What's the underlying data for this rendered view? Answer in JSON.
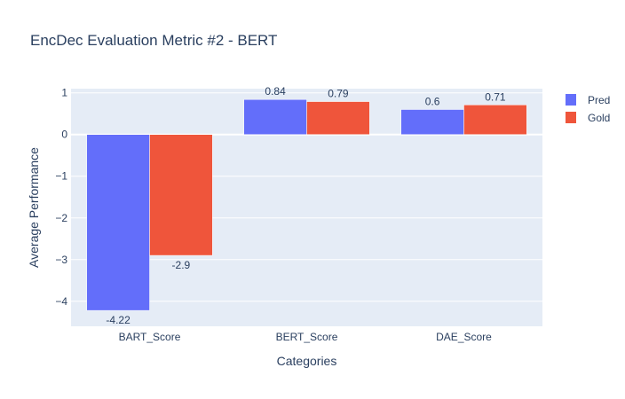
{
  "chart_data": {
    "type": "bar",
    "title": "EncDec Evaluation Metric #2 - BERT",
    "xlabel": "Categories",
    "ylabel": "Average Performance",
    "categories": [
      "BART_Score",
      "BERT_Score",
      "DAE_Score"
    ],
    "series": [
      {
        "name": "Pred",
        "values": [
          -4.22,
          0.84,
          0.6
        ],
        "labels": [
          "-4.22",
          "0.84",
          "0.6"
        ],
        "color": "#636efa"
      },
      {
        "name": "Gold",
        "values": [
          -2.9,
          0.79,
          0.71
        ],
        "labels": [
          "-2.9",
          "0.79",
          "0.71"
        ],
        "color": "#ef553b"
      }
    ],
    "ylim": [
      -4.6,
      1.1
    ],
    "yticks": [
      1,
      0,
      -1,
      -2,
      -3,
      -4
    ],
    "ytick_labels": [
      "1",
      "0",
      "−1",
      "−2",
      "−3",
      "−4"
    ],
    "grid": true,
    "legend_position": "top-right",
    "plot_background": "#e5ecf6"
  }
}
